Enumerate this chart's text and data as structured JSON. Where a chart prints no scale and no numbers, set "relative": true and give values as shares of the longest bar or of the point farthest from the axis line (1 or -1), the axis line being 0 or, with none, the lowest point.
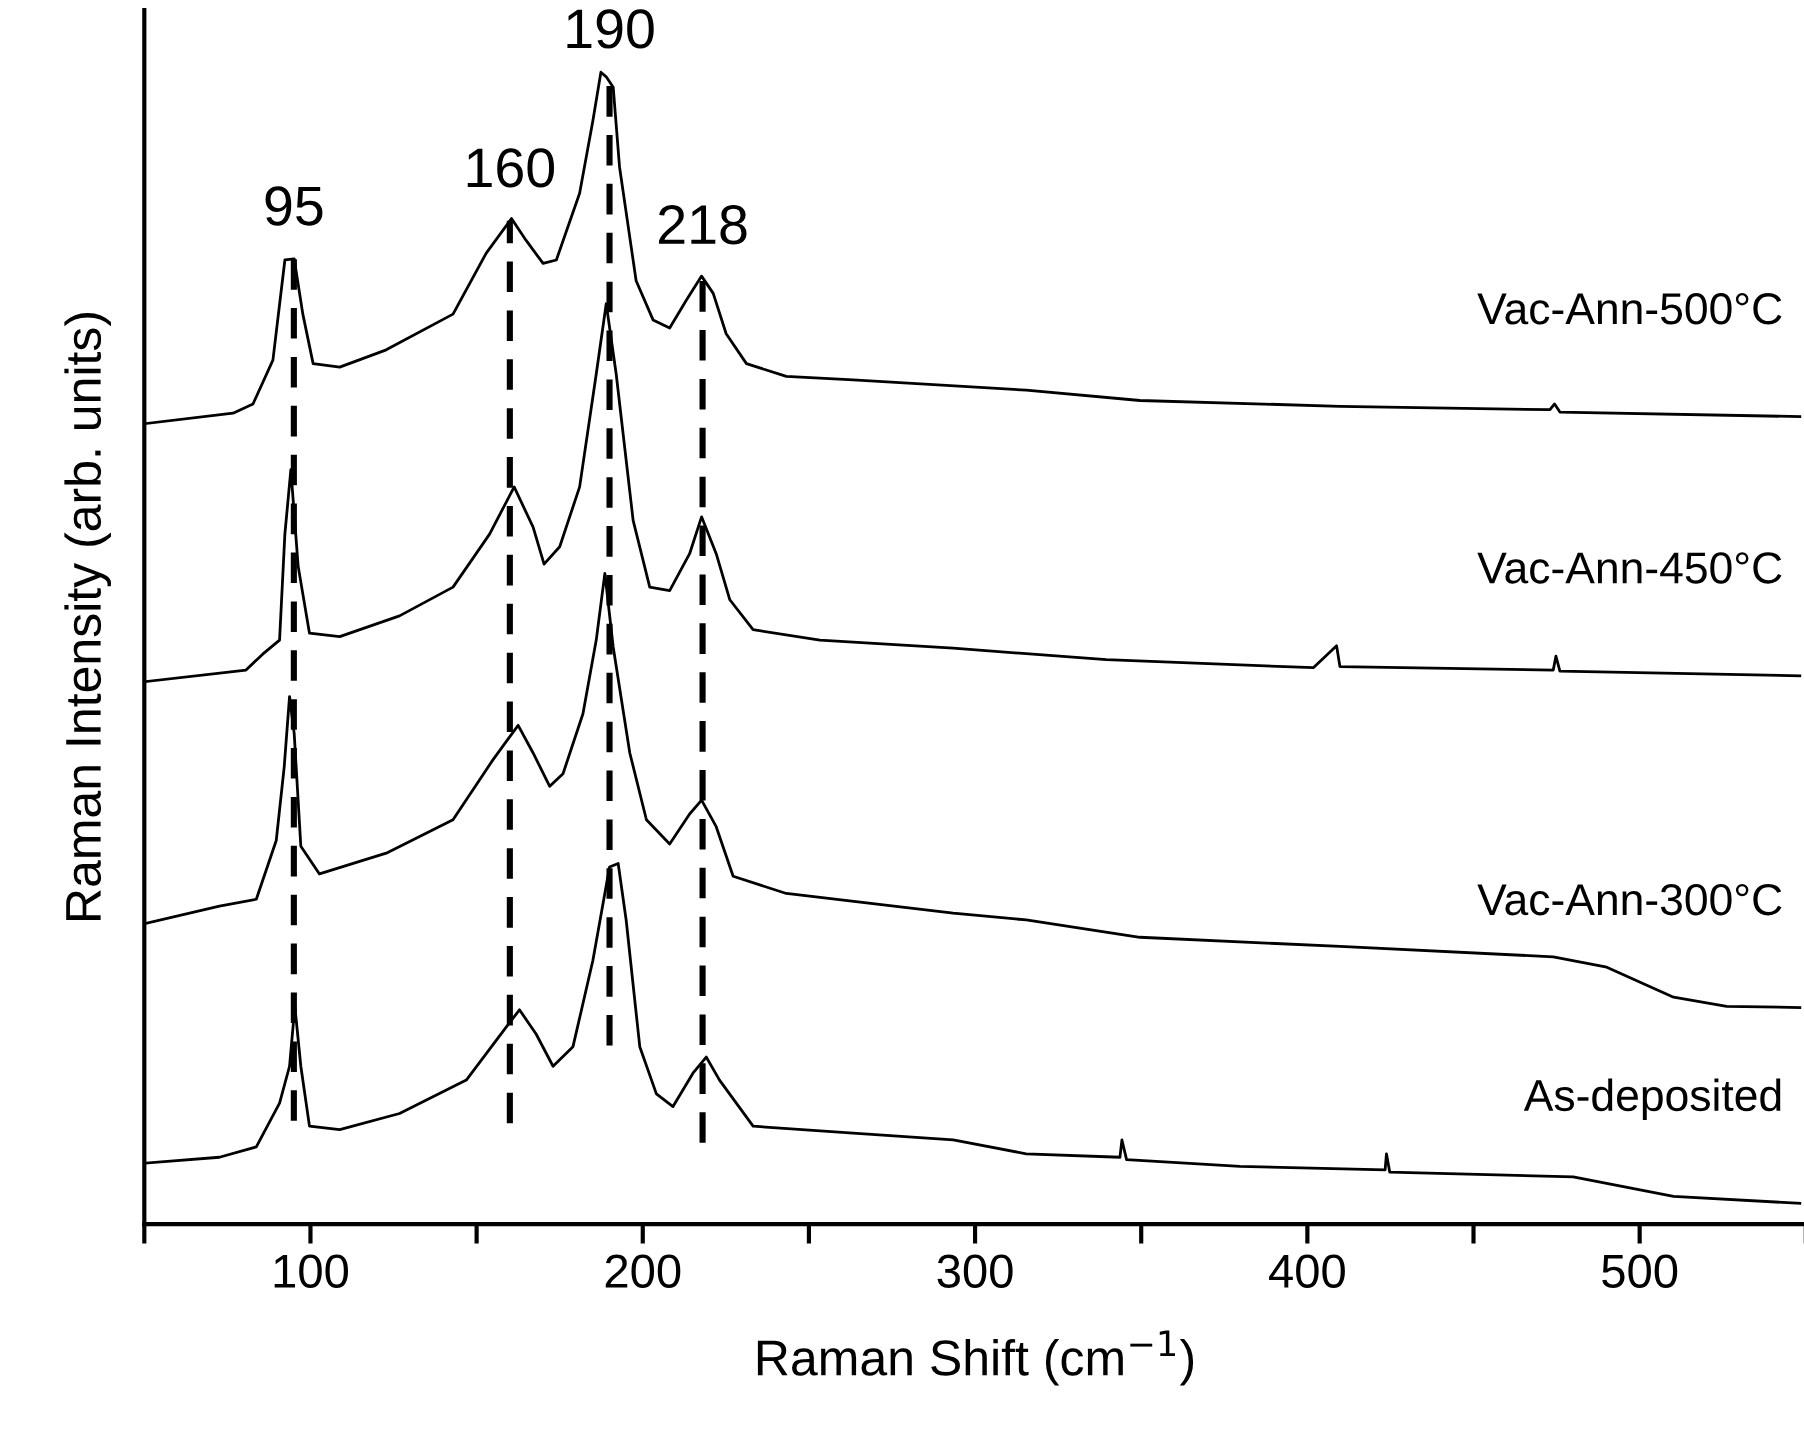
{
  "chart_data": {
    "type": "line",
    "relative": true,
    "xlabel": "Raman Shift (cm$^{−1}$)",
    "ylabel": "Raman Intensity (arb. units)",
    "xlim": [
      50,
      550
    ],
    "xticks": [
      {
        "value": 50,
        "label": null
      },
      100,
      {
        "value": 150,
        "label": null
      },
      200,
      {
        "value": 250,
        "label": null
      },
      300,
      {
        "value": 350,
        "label": null
      },
      400,
      {
        "value": 450,
        "label": null
      },
      500,
      {
        "value": 550,
        "label": null
      }
    ],
    "tick_labels": "x",
    "grid": false,
    "legend": false,
    "marker": "none",
    "line_style": "solid",
    "ref_lines": [
      {
        "axis": "x",
        "value": 95,
        "label": "95",
        "line_style": "dashed",
        "color": "#000000"
      },
      {
        "axis": "x",
        "value": 160,
        "label": "160",
        "line_style": "dashed",
        "color": "#000000"
      },
      {
        "axis": "x",
        "value": 190,
        "label": "190",
        "line_style": "dashed",
        "color": "#000000"
      },
      {
        "axis": "x",
        "value": 218,
        "label": "218",
        "line_style": "dashed",
        "color": "#000000"
      }
    ],
    "series": [
      {
        "name": "Vac-Ann-500°C",
        "color": "#000000",
        "x": [
          50.5,
          76.7,
          82.7,
          88.7,
          92.3,
          95.1,
          97.7,
          100.8,
          108.8,
          122.8,
          142.9,
          152.9,
          160.5,
          164.9,
          170.0,
          174.0,
          181.0,
          185.0,
          187.4,
          189.0,
          191.1,
          193.0,
          198.0,
          203.1,
          208.1,
          213.1,
          217.7,
          221.2,
          225.1,
          231.2,
          243.2,
          263.3,
          315.4,
          349.6,
          409.8,
          473.0,
          474.4,
          476.0,
          548.2
        ],
        "values": [
          0.695,
          0.704,
          0.712,
          0.75,
          0.837,
          0.838,
          0.79,
          0.747,
          0.744,
          0.759,
          0.79,
          0.843,
          0.873,
          0.854,
          0.834,
          0.837,
          0.895,
          0.958,
          1,
          0.996,
          0.987,
          0.918,
          0.819,
          0.785,
          0.778,
          0.802,
          0.823,
          0.808,
          0.773,
          0.747,
          0.736,
          0.733,
          0.724,
          0.715,
          0.71,
          0.707,
          0.712,
          0.705,
          0.701
        ]
      },
      {
        "name": "Vac-Ann-450°C",
        "color": "#000000",
        "x": [
          50.5,
          80.6,
          85.7,
          90.7,
          92.3,
          94.1,
          96.3,
          99.7,
          108.8,
          126.8,
          142.9,
          153.9,
          161.3,
          167.0,
          170.3,
          175.0,
          181.0,
          186.0,
          189.0,
          192.0,
          197.1,
          202.1,
          208.1,
          214.1,
          217.7,
          222.1,
          226.2,
          233.2,
          253.3,
          293.4,
          339.5,
          401.8,
          408.8,
          409.8,
          474.0,
          474.8,
          476.0,
          548.2
        ],
        "values": [
          0.471,
          0.481,
          0.495,
          0.507,
          0.599,
          0.655,
          0.571,
          0.513,
          0.51,
          0.528,
          0.553,
          0.599,
          0.64,
          0.605,
          0.573,
          0.588,
          0.64,
          0.738,
          0.799,
          0.738,
          0.611,
          0.553,
          0.55,
          0.582,
          0.614,
          0.582,
          0.542,
          0.516,
          0.507,
          0.5,
          0.49,
          0.483,
          0.502,
          0.484,
          0.481,
          0.493,
          0.48,
          0.476
        ]
      },
      {
        "name": "Vac-Ann-300°C",
        "color": "#000000",
        "x": [
          50.5,
          72.6,
          83.7,
          89.7,
          92.1,
          93.7,
          95.1,
          97.1,
          102.7,
          122.8,
          142.9,
          154.9,
          162.5,
          167.0,
          172.0,
          176.0,
          182.0,
          186.0,
          188.6,
          191.1,
          196.1,
          201.1,
          208.1,
          214.1,
          217.7,
          222.1,
          227.2,
          243.2,
          293.4,
          315.4,
          349.6,
          409.8,
          474.0,
          490.1,
          510.2,
          526.2,
          548.2
        ],
        "values": [
          0.261,
          0.276,
          0.282,
          0.333,
          0.397,
          0.458,
          0.426,
          0.328,
          0.304,
          0.322,
          0.351,
          0.403,
          0.433,
          0.409,
          0.38,
          0.391,
          0.443,
          0.507,
          0.565,
          0.501,
          0.409,
          0.351,
          0.33,
          0.356,
          0.368,
          0.345,
          0.302,
          0.287,
          0.27,
          0.264,
          0.249,
          0.241,
          0.232,
          0.223,
          0.197,
          0.189,
          0.188
        ]
      },
      {
        "name": "As-deposited",
        "color": "#000000",
        "x": [
          50.5,
          72.6,
          83.7,
          90.7,
          93.7,
          95.3,
          97.1,
          99.7,
          108.8,
          126.8,
          146.9,
          158.9,
          162.9,
          167.9,
          173.0,
          179.0,
          185.0,
          190.0,
          192.6,
          195.0,
          199.1,
          204.1,
          209.1,
          215.1,
          219.1,
          223.1,
          233.2,
          263.3,
          293.4,
          315.4,
          343.6,
          344.2,
          345.6,
          379.7,
          423.4,
          423.8,
          424.8,
          480.0,
          510.2,
          548.2
        ],
        "values": [
          0.053,
          0.058,
          0.067,
          0.105,
          0.137,
          0.189,
          0.137,
          0.085,
          0.082,
          0.096,
          0.125,
          0.171,
          0.186,
          0.165,
          0.137,
          0.154,
          0.229,
          0.31,
          0.313,
          0.264,
          0.154,
          0.113,
          0.102,
          0.131,
          0.145,
          0.125,
          0.085,
          0.079,
          0.073,
          0.061,
          0.058,
          0.073,
          0.056,
          0.05,
          0.047,
          0.061,
          0.045,
          0.041,
          0.024,
          0.018
        ]
      }
    ]
  }
}
